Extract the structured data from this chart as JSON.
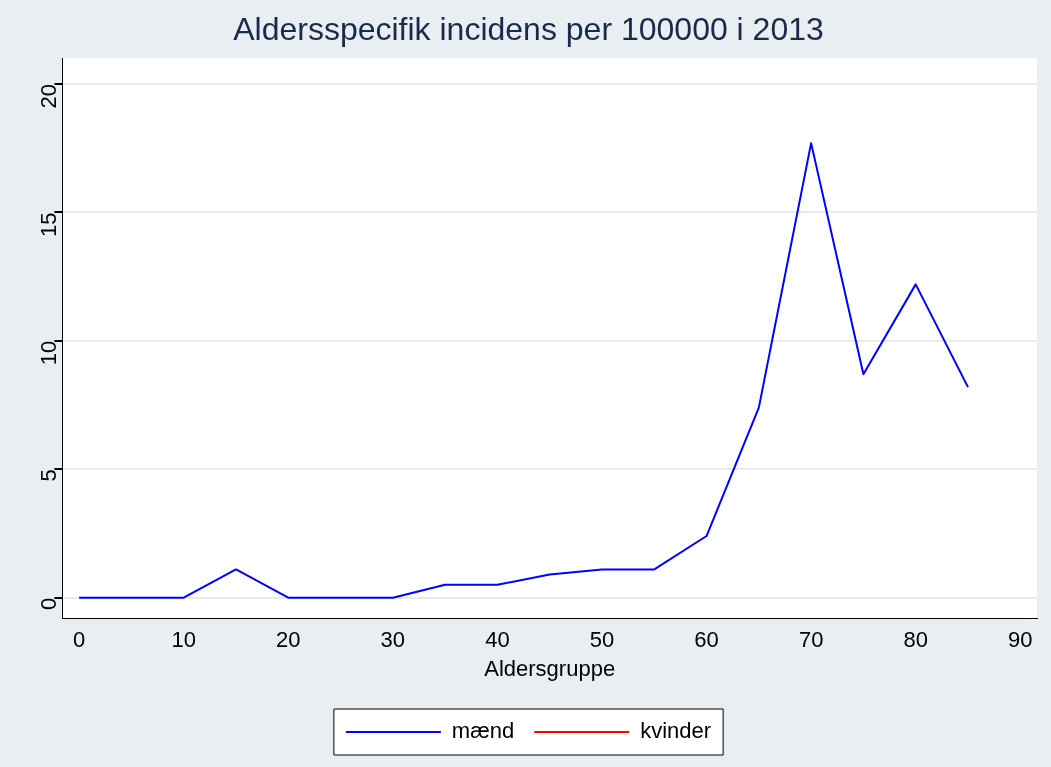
{
  "chart_data": {
    "type": "line",
    "title": "Aldersspecifik incidens per 100000 i 2013",
    "xlabel": "Aldersgruppe",
    "x": [
      0,
      5,
      10,
      15,
      20,
      25,
      30,
      35,
      40,
      45,
      50,
      55,
      60,
      65,
      70,
      75,
      80,
      85
    ],
    "series": [
      {
        "name": "mænd",
        "color": "#0000ff",
        "values": [
          0,
          0,
          0,
          1.1,
          0,
          0,
          0,
          0.5,
          0.5,
          0.9,
          1.1,
          1.1,
          2.4,
          7.4,
          17.7,
          8.7,
          12.2,
          8.2
        ]
      },
      {
        "name": "kvinder",
        "color": "#ff0000",
        "values": [
          null,
          null,
          null,
          null,
          null,
          null,
          null,
          null,
          null,
          null,
          null,
          null,
          null,
          null,
          null,
          null,
          null,
          null
        ]
      }
    ],
    "xlim": [
      -1.6,
      91.6
    ],
    "xticks": [
      0,
      10,
      20,
      30,
      40,
      50,
      60,
      70,
      80,
      90
    ],
    "ylim": [
      -0.8,
      21
    ],
    "yticks": [
      0,
      5,
      10,
      15,
      20
    ],
    "grid": "y",
    "legend": "bottom",
    "marker": "none",
    "line_style": "solid"
  }
}
